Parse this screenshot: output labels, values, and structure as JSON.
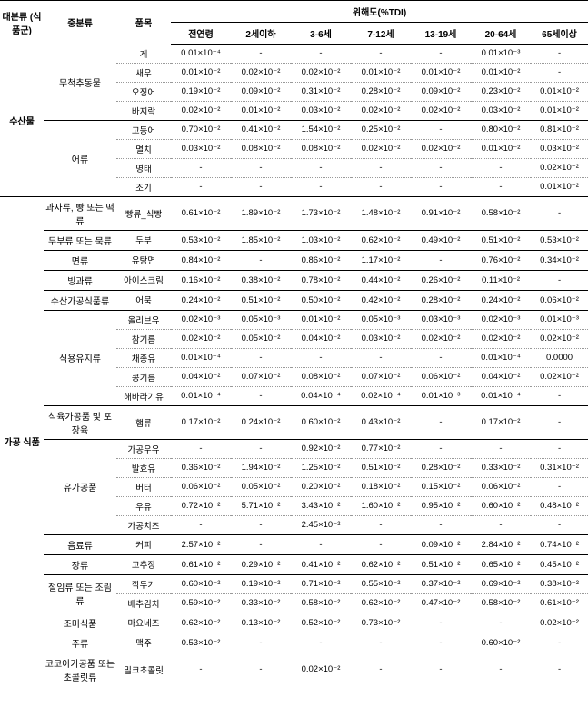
{
  "headers": {
    "h1": "대분류\n(식품군)",
    "h2": "중분류",
    "h3": "품목",
    "h4": "위해도(%TDI)",
    "age1": "전연령",
    "age2": "2세이하",
    "age3": "3-6세",
    "age4": "7-12세",
    "age5": "13-19세",
    "age6": "20-64세",
    "age7": "65세이상"
  },
  "groups": [
    {
      "cat1": "수산물",
      "subs": [
        {
          "cat2": "무척추동물",
          "items": [
            {
              "name": "게",
              "v": [
                "0.01×10⁻⁴",
                "-",
                "-",
                "-",
                "-",
                "0.01×10⁻³",
                "-"
              ]
            },
            {
              "name": "새우",
              "v": [
                "0.01×10⁻²",
                "0.02×10⁻²",
                "0.02×10⁻²",
                "0.01×10⁻²",
                "0.01×10⁻²",
                "0.01×10⁻²",
                "-"
              ]
            },
            {
              "name": "오징어",
              "v": [
                "0.19×10⁻²",
                "0.09×10⁻²",
                "0.31×10⁻²",
                "0.28×10⁻²",
                "0.09×10⁻²",
                "0.23×10⁻²",
                "0.01×10⁻²"
              ]
            },
            {
              "name": "바지락",
              "v": [
                "0.02×10⁻²",
                "0.01×10⁻²",
                "0.03×10⁻²",
                "0.02×10⁻²",
                "0.02×10⁻²",
                "0.03×10⁻²",
                "0.01×10⁻²"
              ]
            }
          ]
        },
        {
          "cat2": "어류",
          "items": [
            {
              "name": "고등어",
              "v": [
                "0.70×10⁻²",
                "0.41×10⁻²",
                "1.54×10⁻²",
                "0.25×10⁻²",
                "-",
                "0.80×10⁻²",
                "0.81×10⁻²"
              ]
            },
            {
              "name": "멸치",
              "v": [
                "0.03×10⁻²",
                "0.08×10⁻²",
                "0.08×10⁻²",
                "0.02×10⁻²",
                "0.02×10⁻²",
                "0.01×10⁻²",
                "0.03×10⁻²"
              ]
            },
            {
              "name": "명태",
              "v": [
                "-",
                "-",
                "-",
                "-",
                "-",
                "-",
                "0.02×10⁻²"
              ]
            },
            {
              "name": "조기",
              "v": [
                "-",
                "-",
                "-",
                "-",
                "-",
                "-",
                "0.01×10⁻²"
              ]
            }
          ]
        }
      ]
    },
    {
      "cat1": "가공\n식품",
      "subs": [
        {
          "cat2": "과자류, 빵 또는 떡류",
          "items": [
            {
              "name": "빵류_식빵",
              "v": [
                "0.61×10⁻²",
                "1.89×10⁻²",
                "1.73×10⁻²",
                "1.48×10⁻²",
                "0.91×10⁻²",
                "0.58×10⁻²",
                "-"
              ]
            }
          ]
        },
        {
          "cat2": "두부류 또는 묵류",
          "items": [
            {
              "name": "두부",
              "v": [
                "0.53×10⁻²",
                "1.85×10⁻²",
                "1.03×10⁻²",
                "0.62×10⁻²",
                "0.49×10⁻²",
                "0.51×10⁻²",
                "0.53×10⁻²"
              ]
            }
          ]
        },
        {
          "cat2": "면류",
          "items": [
            {
              "name": "유탕면",
              "v": [
                "0.84×10⁻²",
                "-",
                "0.86×10⁻²",
                "1.17×10⁻²",
                "-",
                "0.76×10⁻²",
                "0.34×10⁻²"
              ]
            }
          ]
        },
        {
          "cat2": "빙과류",
          "items": [
            {
              "name": "아이스크림",
              "v": [
                "0.16×10⁻²",
                "0.38×10⁻²",
                "0.78×10⁻²",
                "0.44×10⁻²",
                "0.26×10⁻²",
                "0.11×10⁻²",
                "-"
              ]
            }
          ]
        },
        {
          "cat2": "수산가공식품류",
          "items": [
            {
              "name": "어묵",
              "v": [
                "0.24×10⁻²",
                "0.51×10⁻²",
                "0.50×10⁻²",
                "0.42×10⁻²",
                "0.28×10⁻²",
                "0.24×10⁻²",
                "0.06×10⁻²"
              ]
            }
          ]
        },
        {
          "cat2": "식용유지류",
          "items": [
            {
              "name": "올리브유",
              "v": [
                "0.02×10⁻³",
                "0.05×10⁻³",
                "0.01×10⁻²",
                "0.05×10⁻³",
                "0.03×10⁻³",
                "0.02×10⁻³",
                "0.01×10⁻³"
              ]
            },
            {
              "name": "참기름",
              "v": [
                "0.02×10⁻²",
                "0.05×10⁻²",
                "0.04×10⁻²",
                "0.03×10⁻²",
                "0.02×10⁻²",
                "0.02×10⁻²",
                "0.02×10⁻²"
              ]
            },
            {
              "name": "채종유",
              "v": [
                "0.01×10⁻⁴",
                "-",
                "-",
                "-",
                "-",
                "0.01×10⁻⁴",
                "0.0000"
              ]
            },
            {
              "name": "콩기름",
              "v": [
                "0.04×10⁻²",
                "0.07×10⁻²",
                "0.08×10⁻²",
                "0.07×10⁻²",
                "0.06×10⁻²",
                "0.04×10⁻²",
                "0.02×10⁻²"
              ]
            },
            {
              "name": "해바라기유",
              "v": [
                "0.01×10⁻⁴",
                "-",
                "0.04×10⁻⁴",
                "0.02×10⁻⁴",
                "0.01×10⁻³",
                "0.01×10⁻⁴",
                "-"
              ]
            }
          ]
        },
        {
          "cat2": "식육가공품 및 포장육",
          "items": [
            {
              "name": "햄류",
              "v": [
                "0.17×10⁻²",
                "0.24×10⁻²",
                "0.60×10⁻²",
                "0.43×10⁻²",
                "-",
                "0.17×10⁻²",
                "-"
              ]
            }
          ]
        },
        {
          "cat2": "유가공품",
          "items": [
            {
              "name": "가공우유",
              "v": [
                "-",
                "-",
                "0.92×10⁻²",
                "0.77×10⁻²",
                "-",
                "-",
                "-"
              ]
            },
            {
              "name": "발효유",
              "v": [
                "0.36×10⁻²",
                "1.94×10⁻²",
                "1.25×10⁻²",
                "0.51×10⁻²",
                "0.28×10⁻²",
                "0.33×10⁻²",
                "0.31×10⁻²"
              ]
            },
            {
              "name": "버터",
              "v": [
                "0.06×10⁻²",
                "0.05×10⁻²",
                "0.20×10⁻²",
                "0.18×10⁻²",
                "0.15×10⁻²",
                "0.06×10⁻²",
                "-"
              ]
            },
            {
              "name": "우유",
              "v": [
                "0.72×10⁻²",
                "5.71×10⁻²",
                "3.43×10⁻²",
                "1.60×10⁻²",
                "0.95×10⁻²",
                "0.60×10⁻²",
                "0.48×10⁻²"
              ]
            },
            {
              "name": "가공치즈",
              "v": [
                "-",
                "-",
                "2.45×10⁻²",
                "-",
                "-",
                "-",
                "-"
              ]
            }
          ]
        },
        {
          "cat2": "음료류",
          "items": [
            {
              "name": "커피",
              "v": [
                "2.57×10⁻²",
                "-",
                "-",
                "-",
                "0.09×10⁻²",
                "2.84×10⁻²",
                "0.74×10⁻²"
              ]
            }
          ]
        },
        {
          "cat2": "장류",
          "items": [
            {
              "name": "고추장",
              "v": [
                "0.61×10⁻²",
                "0.29×10⁻²",
                "0.41×10⁻²",
                "0.62×10⁻²",
                "0.51×10⁻²",
                "0.65×10⁻²",
                "0.45×10⁻²"
              ]
            }
          ]
        },
        {
          "cat2": "절임류 또는 조림류",
          "items": [
            {
              "name": "깍두기",
              "v": [
                "0.60×10⁻²",
                "0.19×10⁻²",
                "0.71×10⁻²",
                "0.55×10⁻²",
                "0.37×10⁻²",
                "0.69×10⁻²",
                "0.38×10⁻²"
              ]
            },
            {
              "name": "배추김치",
              "v": [
                "0.59×10⁻²",
                "0.33×10⁻²",
                "0.58×10⁻²",
                "0.62×10⁻²",
                "0.47×10⁻²",
                "0.58×10⁻²",
                "0.61×10⁻²"
              ]
            }
          ]
        },
        {
          "cat2": "조미식품",
          "items": [
            {
              "name": "마요네즈",
              "v": [
                "0.62×10⁻²",
                "0.13×10⁻²",
                "0.52×10⁻²",
                "0.73×10⁻²",
                "-",
                "-",
                "0.02×10⁻²"
              ]
            }
          ]
        },
        {
          "cat2": "주류",
          "items": [
            {
              "name": "맥주",
              "v": [
                "0.53×10⁻²",
                "-",
                "-",
                "-",
                "-",
                "0.60×10⁻²",
                "-"
              ]
            }
          ]
        },
        {
          "cat2": "코코아가공품\n또는 초콜릿류",
          "items": [
            {
              "name": "밀크초콜릿",
              "v": [
                "-",
                "-",
                "0.02×10⁻²",
                "-",
                "-",
                "-",
                "-"
              ]
            }
          ]
        }
      ]
    }
  ]
}
